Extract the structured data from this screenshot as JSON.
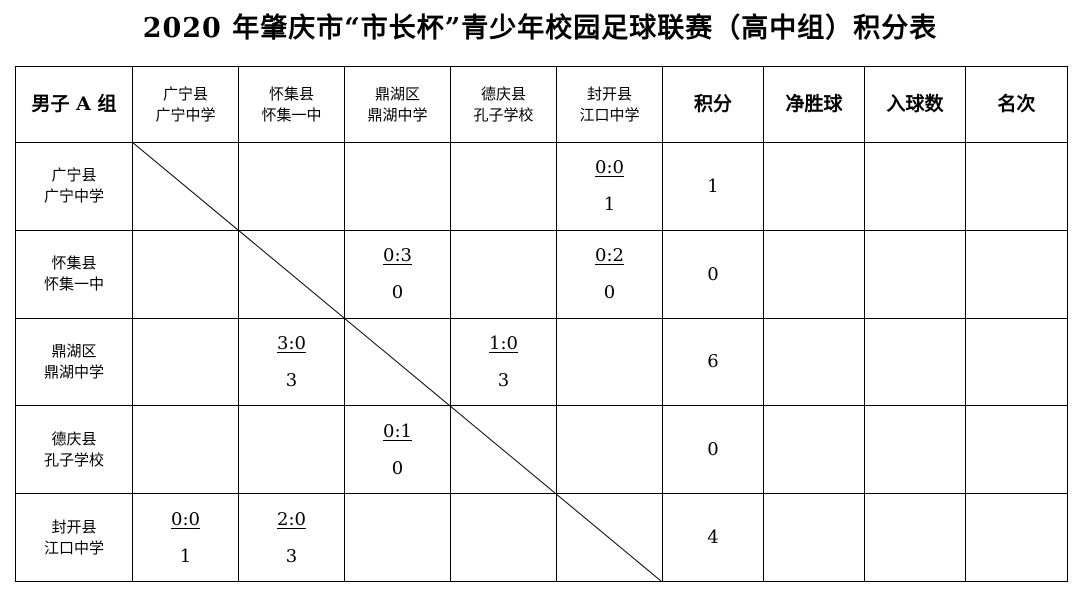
{
  "title": "2020 年肇庆市“市长杯”青少年校园足球联赛（高中组）积分表",
  "corner_label": "男子 A 组",
  "teams": [
    {
      "region": "广宁县",
      "school": "广宁中学"
    },
    {
      "region": "怀集县",
      "school": "怀集一中"
    },
    {
      "region": "鼎湖区",
      "school": "鼎湖中学"
    },
    {
      "region": "德庆县",
      "school": "孔子学校"
    },
    {
      "region": "封开县",
      "school": "江口中学"
    }
  ],
  "stat_headers": [
    "积分",
    "净胜球",
    "入球数",
    "名次"
  ],
  "results": [
    [
      "",
      "",
      "",
      "",
      {
        "score": "0:0",
        "points": "1"
      }
    ],
    [
      "",
      "",
      {
        "score": "0:3",
        "points": "0"
      },
      "",
      {
        "score": "0:2",
        "points": "0"
      }
    ],
    [
      "",
      {
        "score": "3:0",
        "points": "3"
      },
      "",
      {
        "score": "1:0",
        "points": "3"
      },
      ""
    ],
    [
      "",
      "",
      {
        "score": "0:1",
        "points": "0"
      },
      "",
      ""
    ],
    [
      {
        "score": "0:0",
        "points": "1"
      },
      {
        "score": "2:0",
        "points": "3"
      },
      "",
      "",
      ""
    ]
  ],
  "standings": [
    {
      "total_points": "1",
      "goal_difference": "",
      "goals_scored": "",
      "rank": ""
    },
    {
      "total_points": "0",
      "goal_difference": "",
      "goals_scored": "",
      "rank": ""
    },
    {
      "total_points": "6",
      "goal_difference": "",
      "goals_scored": "",
      "rank": ""
    },
    {
      "total_points": "0",
      "goal_difference": "",
      "goals_scored": "",
      "rank": ""
    },
    {
      "total_points": "4",
      "goal_difference": "",
      "goals_scored": "",
      "rank": ""
    }
  ]
}
